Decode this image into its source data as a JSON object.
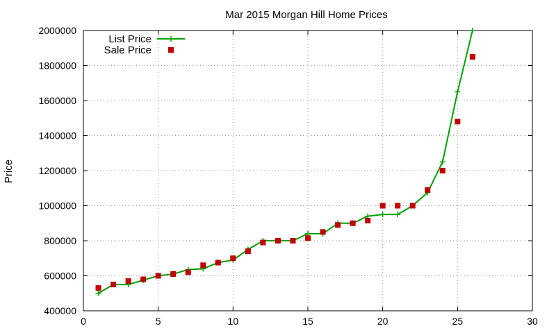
{
  "chart_data": {
    "type": "line",
    "title": "Mar 2015 Morgan Hill Home Prices",
    "xlabel": "",
    "ylabel": "Price",
    "xlim": [
      0,
      30
    ],
    "ylim": [
      400000,
      2000000
    ],
    "xticks": [
      "0",
      "5",
      "10",
      "15",
      "20",
      "25",
      "30"
    ],
    "yticks": [
      "400000",
      "600000",
      "800000",
      "1000000",
      "1200000",
      "1400000",
      "1600000",
      "1800000",
      "2000000"
    ],
    "grid": true,
    "legend_position": "top-left",
    "series": [
      {
        "name": "List Price",
        "style": "line with plus markers",
        "color": "#00a000",
        "x": [
          1,
          2,
          3,
          4,
          5,
          6,
          7,
          8,
          9,
          10,
          11,
          12,
          13,
          14,
          15,
          16,
          17,
          18,
          19,
          20,
          21,
          22,
          23,
          24,
          25,
          26
        ],
        "y": [
          500000,
          550000,
          550000,
          575000,
          600000,
          610000,
          635000,
          640000,
          675000,
          690000,
          750000,
          800000,
          800000,
          800000,
          840000,
          840000,
          900000,
          900000,
          940000,
          950000,
          950000,
          1000000,
          1075000,
          1250000,
          1650000,
          2000000
        ]
      },
      {
        "name": "Sale Price",
        "style": "square markers",
        "color": "#c00000",
        "x": [
          1,
          2,
          3,
          4,
          5,
          6,
          7,
          8,
          9,
          10,
          11,
          12,
          13,
          14,
          15,
          16,
          17,
          18,
          19,
          20,
          21,
          22,
          23,
          24,
          25,
          26
        ],
        "y": [
          530000,
          550000,
          570000,
          580000,
          600000,
          610000,
          620000,
          660000,
          675000,
          700000,
          740000,
          790000,
          800000,
          800000,
          815000,
          850000,
          890000,
          900000,
          915000,
          1000000,
          1000000,
          1000000,
          1090000,
          1200000,
          1480000,
          1850000
        ]
      }
    ]
  }
}
